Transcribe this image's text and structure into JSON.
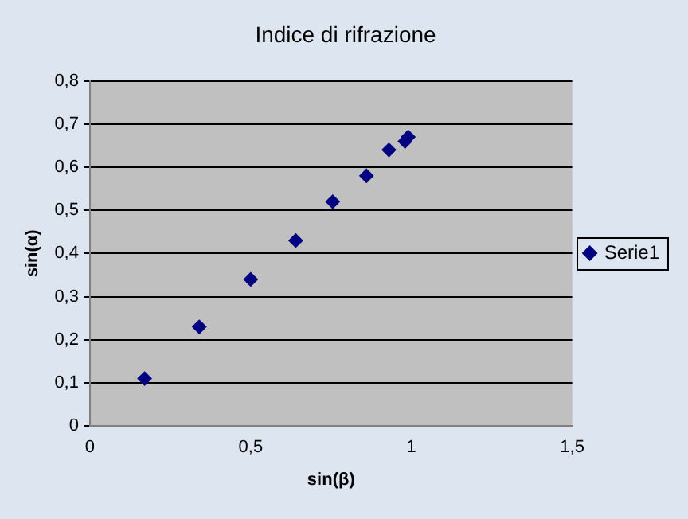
{
  "chart_data": {
    "type": "scatter",
    "title": "Indice di rifrazione",
    "xlabel": "sin(β)",
    "ylabel": "sin(α)",
    "x": [
      0.17,
      0.34,
      0.5,
      0.64,
      0.755,
      0.86,
      0.93,
      0.98,
      0.99
    ],
    "series": [
      {
        "name": "Serie1",
        "color": "#000080",
        "values": [
          0.11,
          0.23,
          0.34,
          0.43,
          0.52,
          0.58,
          0.64,
          0.66,
          0.67
        ]
      }
    ],
    "xlim": [
      0,
      1.5
    ],
    "xticks": [
      0,
      {
        "value": 0.5,
        "label": "0,5"
      },
      1,
      {
        "value": 1.5,
        "label": "1,5"
      }
    ],
    "ylim": [
      0,
      0.8
    ],
    "yticks": [
      0,
      {
        "value": 0.1,
        "label": "0,1"
      },
      {
        "value": 0.2,
        "label": "0,2"
      },
      {
        "value": 0.3,
        "label": "0,3"
      },
      {
        "value": 0.4,
        "label": "0,4"
      },
      {
        "value": 0.5,
        "label": "0,5"
      },
      {
        "value": 0.6,
        "label": "0,6"
      },
      {
        "value": 0.7,
        "label": "0,7"
      },
      {
        "value": 0.8,
        "label": "0,8"
      }
    ],
    "grid": "y",
    "legend": "right",
    "marker": "diamond"
  }
}
